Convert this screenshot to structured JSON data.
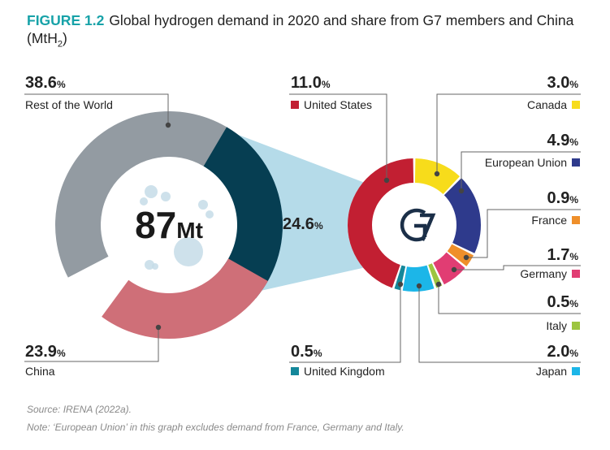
{
  "figure": {
    "label": "FIGURE 1.2",
    "title": "Global hydrogen demand in 2020 and share from G7 members and China (MtH",
    "title_sub": "2",
    "title_end": ")"
  },
  "chart_data": [
    {
      "type": "pie",
      "variant": "donut",
      "center_value": "87",
      "center_unit": "Mt",
      "slices": [
        {
          "name": "Rest of the World",
          "value": 38.6,
          "label": "38.6",
          "color": "#939ba2"
        },
        {
          "name": "G7",
          "value": 24.6,
          "label": "24.6",
          "color": "#063e52"
        },
        {
          "name": "China",
          "value": 23.9,
          "label": "23.9",
          "color": "#cf6f78"
        }
      ]
    },
    {
      "type": "pie",
      "variant": "donut",
      "center_logo": "G7",
      "slices": [
        {
          "name": "Canada",
          "value": 3.0,
          "label": "3.0",
          "color": "#f7dc1b"
        },
        {
          "name": "European Union",
          "value": 4.9,
          "label": "4.9",
          "color": "#2e3a8c"
        },
        {
          "name": "France",
          "value": 0.9,
          "label": "0.9",
          "color": "#ef8f2a"
        },
        {
          "name": "Germany",
          "value": 1.7,
          "label": "1.7",
          "color": "#e13d73"
        },
        {
          "name": "Italy",
          "value": 0.5,
          "label": "0.5",
          "color": "#9dc540"
        },
        {
          "name": "Japan",
          "value": 2.0,
          "label": "2.0",
          "color": "#1cb6e8"
        },
        {
          "name": "United Kingdom",
          "value": 0.5,
          "label": "0.5",
          "color": "#14879a"
        },
        {
          "name": "United States",
          "value": 11.0,
          "label": "11.0",
          "color": "#c21f32"
        }
      ]
    }
  ],
  "percent_sign": "%",
  "source": "Source: IRENA (2022a).",
  "note": "Note: ‘European Union’ in this graph excludes demand from France, Germany and Italy.",
  "colors": {
    "connector": "#b5dbe9",
    "accent": "#17a2a8",
    "leader": "#555555"
  }
}
